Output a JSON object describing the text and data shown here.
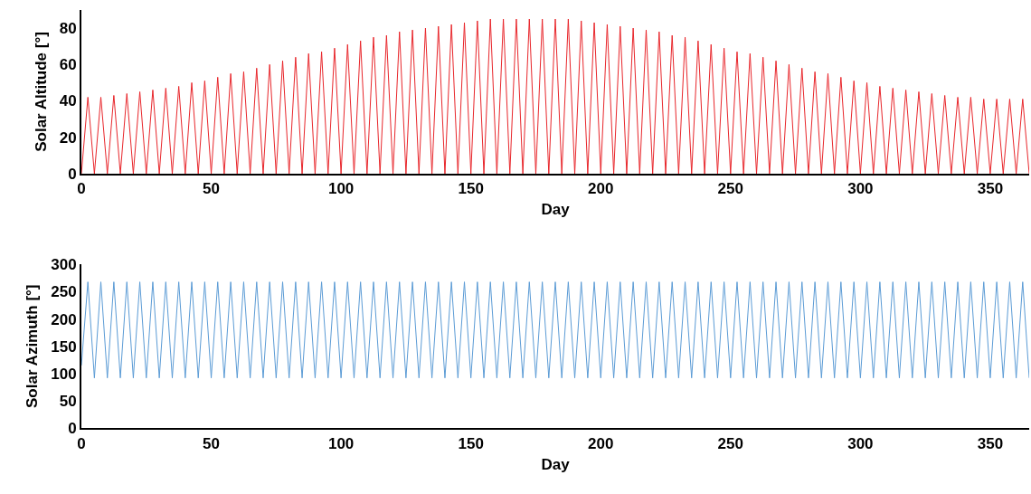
{
  "chart_data": [
    {
      "type": "line",
      "xlabel": "Day",
      "ylabel": "Solar Altitude [°]",
      "xlim": [
        0,
        365
      ],
      "xticks": [
        0,
        50,
        100,
        150,
        200,
        250,
        300,
        350
      ],
      "ylim": [
        0,
        90
      ],
      "yticks": [
        0,
        20,
        40,
        60,
        80
      ],
      "marker": "none",
      "line_style": "solid",
      "x": [
        0,
        2.5,
        5,
        7.5,
        10,
        12.5,
        15,
        17.5,
        20,
        22.5,
        25,
        27.5,
        30,
        32.5,
        35,
        37.5,
        40,
        42.5,
        45,
        47.5,
        50,
        52.5,
        55,
        57.5,
        60,
        62.5,
        65,
        67.5,
        70,
        72.5,
        75,
        77.5,
        80,
        82.5,
        85,
        87.5,
        90,
        92.5,
        95,
        97.5,
        100,
        102.5,
        105,
        107.5,
        110,
        112.5,
        115,
        117.5,
        120,
        122.5,
        125,
        127.5,
        130,
        132.5,
        135,
        137.5,
        140,
        142.5,
        145,
        147.5,
        150,
        152.5,
        155,
        157.5,
        160,
        162.5,
        165,
        167.5,
        170,
        172.5,
        175,
        177.5,
        180,
        182.5,
        185,
        187.5,
        190,
        192.5,
        195,
        197.5,
        200,
        202.5,
        205,
        207.5,
        210,
        212.5,
        215,
        217.5,
        220,
        222.5,
        225,
        227.5,
        230,
        232.5,
        235,
        237.5,
        240,
        242.5,
        245,
        247.5,
        250,
        252.5,
        255,
        257.5,
        260,
        262.5,
        265,
        267.5,
        270,
        272.5,
        275,
        277.5,
        280,
        282.5,
        285,
        287.5,
        290,
        292.5,
        295,
        297.5,
        300,
        302.5,
        305,
        307.5,
        310,
        312.5,
        315,
        317.5,
        320,
        322.5,
        325,
        327.5,
        330,
        332.5,
        335,
        337.5,
        340,
        342.5,
        345,
        347.5,
        350,
        352.5,
        355,
        357.5,
        360,
        362.5,
        365
      ],
      "series": [
        {
          "color": "#e8262b",
          "values": [
            0,
            42,
            0,
            42,
            0,
            43,
            0,
            44,
            0,
            45,
            0,
            46,
            0,
            47,
            0,
            48,
            0,
            50,
            0,
            51,
            0,
            53,
            0,
            55,
            0,
            56,
            0,
            58,
            0,
            60,
            0,
            62,
            0,
            64,
            0,
            66,
            0,
            67,
            0,
            69,
            0,
            71,
            0,
            73,
            0,
            75,
            0,
            76,
            0,
            78,
            0,
            79,
            0,
            80,
            0,
            81,
            0,
            82,
            0,
            83,
            0,
            84,
            0,
            85,
            0,
            85,
            0,
            85,
            0,
            85,
            0,
            85,
            0,
            85,
            0,
            85,
            0,
            84,
            0,
            83,
            0,
            82,
            0,
            81,
            0,
            80,
            0,
            79,
            0,
            78,
            0,
            76,
            0,
            75,
            0,
            73,
            0,
            71,
            0,
            69,
            0,
            67,
            0,
            66,
            0,
            64,
            0,
            62,
            0,
            60,
            0,
            58,
            0,
            56,
            0,
            55,
            0,
            53,
            0,
            51,
            0,
            50,
            0,
            48,
            0,
            47,
            0,
            46,
            0,
            45,
            0,
            44,
            0,
            43,
            0,
            42,
            0,
            42,
            0,
            41,
            0,
            41,
            0,
            41,
            0,
            41,
            0
          ]
        }
      ]
    },
    {
      "type": "line",
      "xlabel": "Day",
      "ylabel": "Solar Azimuth [°]",
      "xlim": [
        0,
        365
      ],
      "xticks": [
        0,
        50,
        100,
        150,
        200,
        250,
        300,
        350
      ],
      "ylim": [
        0,
        300
      ],
      "yticks": [
        0,
        50,
        100,
        150,
        200,
        250,
        300
      ],
      "marker": "none",
      "line_style": "solid",
      "x": [
        0,
        2.5,
        5,
        7.5,
        10,
        12.5,
        15,
        17.5,
        20,
        22.5,
        25,
        27.5,
        30,
        32.5,
        35,
        37.5,
        40,
        42.5,
        45,
        47.5,
        50,
        52.5,
        55,
        57.5,
        60,
        62.5,
        65,
        67.5,
        70,
        72.5,
        75,
        77.5,
        80,
        82.5,
        85,
        87.5,
        90,
        92.5,
        95,
        97.5,
        100,
        102.5,
        105,
        107.5,
        110,
        112.5,
        115,
        117.5,
        120,
        122.5,
        125,
        127.5,
        130,
        132.5,
        135,
        137.5,
        140,
        142.5,
        145,
        147.5,
        150,
        152.5,
        155,
        157.5,
        160,
        162.5,
        165,
        167.5,
        170,
        172.5,
        175,
        177.5,
        180,
        182.5,
        185,
        187.5,
        190,
        192.5,
        195,
        197.5,
        200,
        202.5,
        205,
        207.5,
        210,
        212.5,
        215,
        217.5,
        220,
        222.5,
        225,
        227.5,
        230,
        232.5,
        235,
        237.5,
        240,
        242.5,
        245,
        247.5,
        250,
        252.5,
        255,
        257.5,
        260,
        262.5,
        265,
        267.5,
        270,
        272.5,
        275,
        277.5,
        280,
        282.5,
        285,
        287.5,
        290,
        292.5,
        295,
        297.5,
        300,
        302.5,
        305,
        307.5,
        310,
        312.5,
        315,
        317.5,
        320,
        322.5,
        325,
        327.5,
        330,
        332.5,
        335,
        337.5,
        340,
        342.5,
        345,
        347.5,
        350,
        352.5,
        355,
        357.5,
        360,
        362.5,
        365
      ],
      "series": [
        {
          "color": "#5b9bd5",
          "values": [
            115,
            268,
            92,
            268,
            92,
            268,
            92,
            268,
            92,
            268,
            92,
            268,
            92,
            268,
            92,
            268,
            92,
            268,
            92,
            268,
            92,
            268,
            92,
            268,
            92,
            268,
            92,
            268,
            92,
            268,
            92,
            268,
            92,
            268,
            92,
            268,
            92,
            268,
            92,
            268,
            92,
            268,
            92,
            268,
            92,
            268,
            92,
            268,
            92,
            268,
            92,
            268,
            92,
            268,
            92,
            268,
            92,
            268,
            92,
            268,
            92,
            268,
            92,
            268,
            92,
            268,
            92,
            268,
            92,
            268,
            92,
            268,
            92,
            268,
            92,
            268,
            92,
            268,
            92,
            268,
            92,
            268,
            92,
            268,
            92,
            268,
            92,
            268,
            92,
            268,
            92,
            268,
            92,
            268,
            92,
            268,
            92,
            268,
            92,
            268,
            92,
            268,
            92,
            268,
            92,
            268,
            92,
            268,
            92,
            268,
            92,
            268,
            92,
            268,
            92,
            268,
            92,
            268,
            92,
            268,
            92,
            268,
            92,
            268,
            92,
            268,
            92,
            268,
            92,
            268,
            92,
            268,
            92,
            268,
            92,
            268,
            92,
            268,
            92,
            268,
            92,
            268,
            92,
            268,
            92,
            268,
            92
          ]
        }
      ]
    }
  ]
}
